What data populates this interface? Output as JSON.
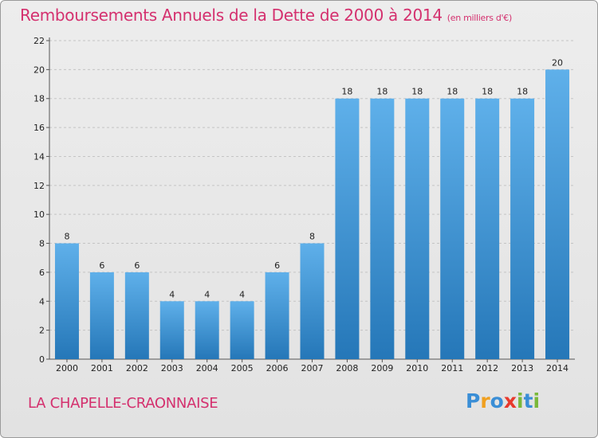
{
  "title": {
    "main": "Remboursements Annuels de la Dette de 2000 à 2014",
    "unit": "(en milliers d'€)"
  },
  "commune": "LA CHAPELLE-CRAONNAISE",
  "logo": {
    "text": "Proxiti",
    "letters": [
      {
        "ch": "P",
        "color": "#3a8ed6"
      },
      {
        "ch": "r",
        "color": "#f0a020"
      },
      {
        "ch": "o",
        "color": "#3a8ed6"
      },
      {
        "ch": "x",
        "color": "#e8392c"
      },
      {
        "ch": "i",
        "color": "#7ab83a"
      },
      {
        "ch": "t",
        "color": "#3a8ed6"
      },
      {
        "ch": "i",
        "color": "#7ab83a"
      }
    ]
  },
  "colors": {
    "title": "#d4306e",
    "bar_top": "#5fb0ea",
    "bar_bottom": "#2577b8"
  },
  "chart_data": {
    "type": "bar",
    "title": "Remboursements Annuels de la Dette de 2000 à 2014",
    "ylabel": "",
    "xlabel": "",
    "categories": [
      "2000",
      "2001",
      "2002",
      "2003",
      "2004",
      "2005",
      "2006",
      "2007",
      "2008",
      "2009",
      "2010",
      "2011",
      "2012",
      "2013",
      "2014"
    ],
    "values": [
      8,
      6,
      6,
      4,
      4,
      4,
      6,
      8,
      18,
      18,
      18,
      18,
      18,
      18,
      20
    ],
    "ylim": [
      0,
      22
    ],
    "yticks": [
      0,
      2,
      4,
      6,
      8,
      10,
      12,
      14,
      16,
      18,
      20,
      22
    ],
    "grid": true
  }
}
